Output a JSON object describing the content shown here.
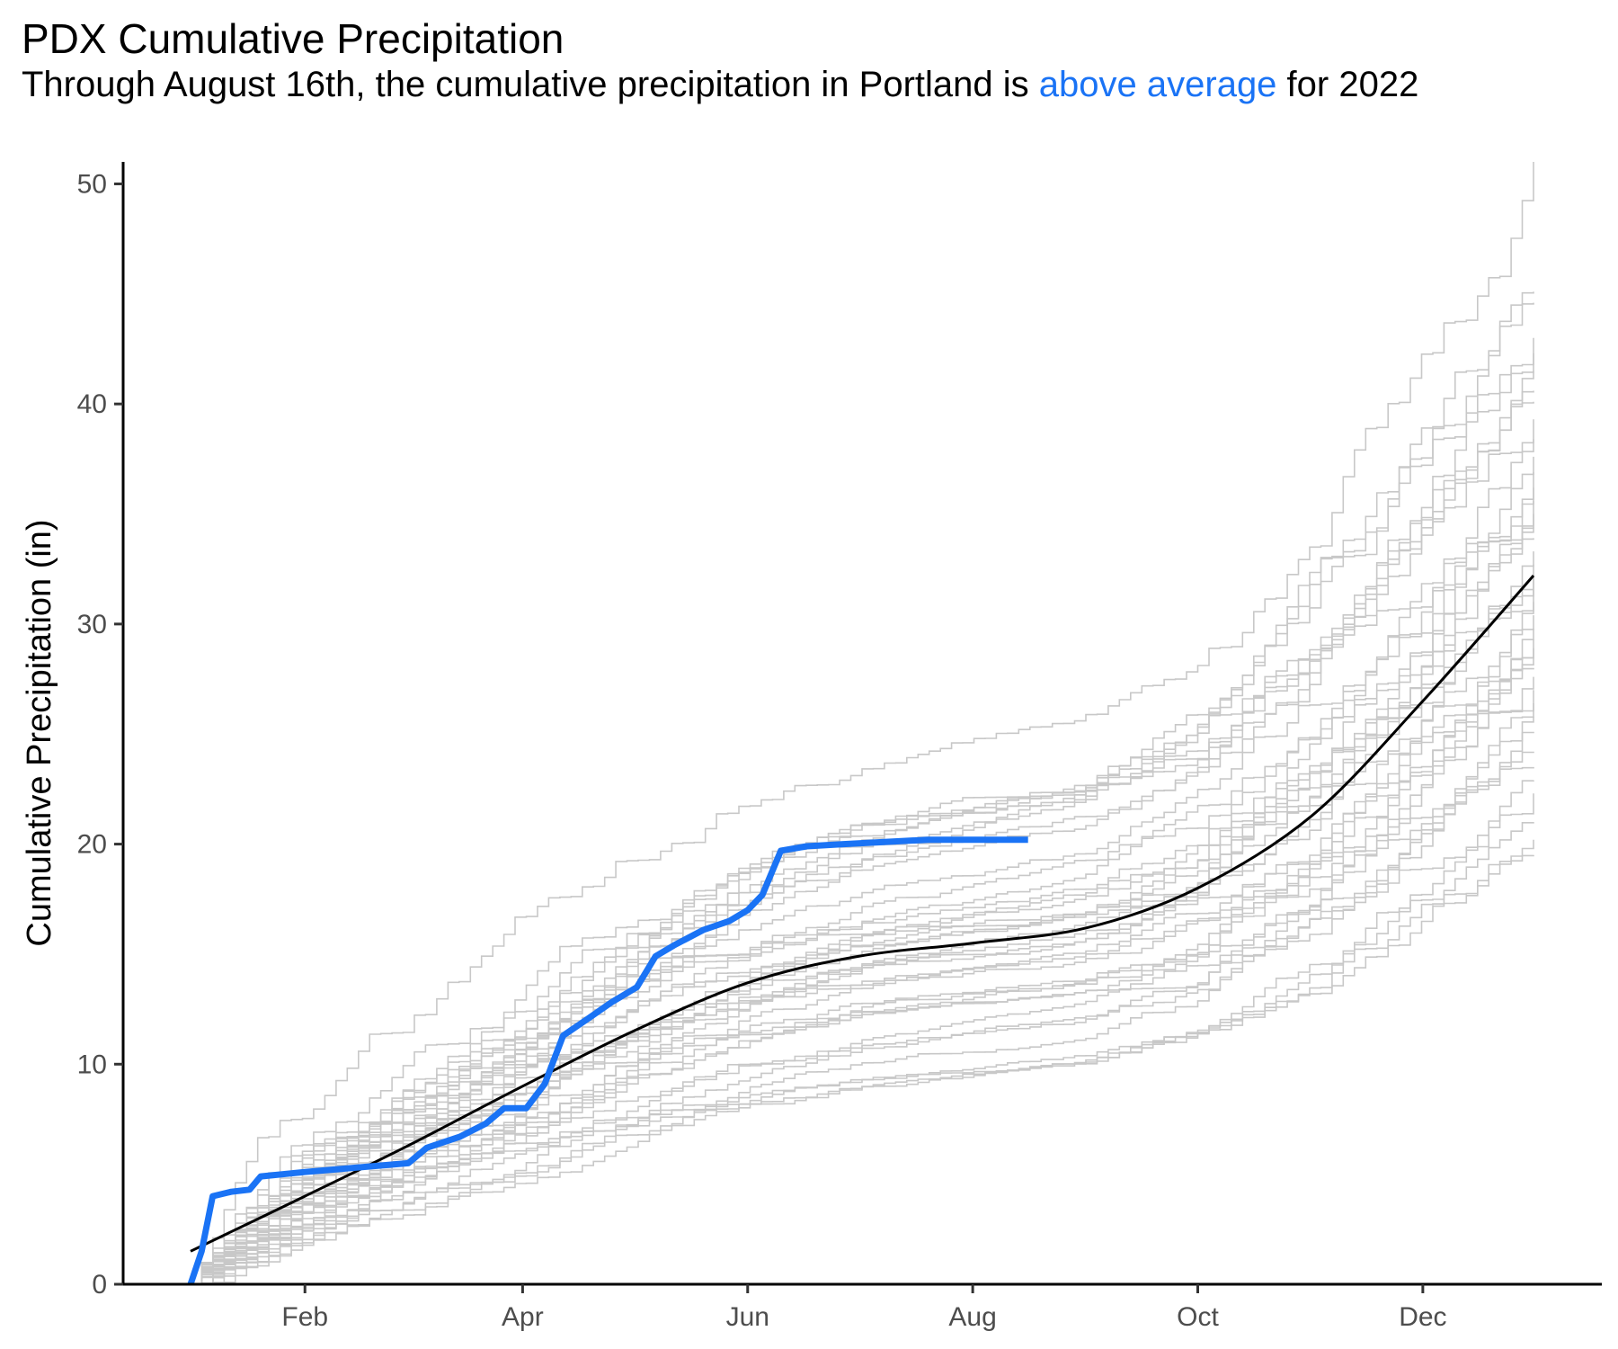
{
  "chart_data": {
    "type": "line",
    "title": "PDX Cumulative Precipitation",
    "subtitle": {
      "before": "Through August 16th, the cumulative precipitation in Portland is ",
      "highlight": "above average",
      "after": " for 2022"
    },
    "xlabel": "",
    "ylabel": "Cumulative Precipitation (in)",
    "xlim": [
      "2022-01-01",
      "2022-12-31"
    ],
    "ylim": [
      0,
      51
    ],
    "x_ticks": [
      {
        "date": "2022-02-01",
        "label": "Feb"
      },
      {
        "date": "2022-04-01",
        "label": "Apr"
      },
      {
        "date": "2022-06-01",
        "label": "Jun"
      },
      {
        "date": "2022-08-01",
        "label": "Aug"
      },
      {
        "date": "2022-10-01",
        "label": "Oct"
      },
      {
        "date": "2022-12-01",
        "label": "Dec"
      }
    ],
    "y_ticks": [
      0,
      10,
      20,
      30,
      40,
      50
    ],
    "grid": false,
    "legend": "none",
    "colors": {
      "current_year": "#1a73f5",
      "average": "#000000",
      "history": "#c8c8c8"
    },
    "average_series": {
      "x": [
        "2022-01-01",
        "2022-02-01",
        "2022-03-01",
        "2022-04-01",
        "2022-05-01",
        "2022-06-01",
        "2022-07-01",
        "2022-08-01",
        "2022-09-01",
        "2022-10-01",
        "2022-11-01",
        "2022-12-01",
        "2022-12-31"
      ],
      "y": [
        1.5,
        4.0,
        6.3,
        9.0,
        11.5,
        13.7,
        14.9,
        15.5,
        16.2,
        18.0,
        21.3,
        26.5,
        32.2
      ]
    },
    "current_year_series": {
      "x": [
        "2022-01-01",
        "2022-01-04",
        "2022-01-07",
        "2022-01-12",
        "2022-01-17",
        "2022-01-20",
        "2022-02-01",
        "2022-03-01",
        "2022-03-06",
        "2022-03-15",
        "2022-03-22",
        "2022-03-27",
        "2022-04-02",
        "2022-04-07",
        "2022-04-12",
        "2022-04-19",
        "2022-04-25",
        "2022-05-02",
        "2022-05-07",
        "2022-05-12",
        "2022-05-20",
        "2022-05-27",
        "2022-06-01",
        "2022-06-05",
        "2022-06-10",
        "2022-06-17",
        "2022-06-27",
        "2022-07-20",
        "2022-08-16"
      ],
      "y": [
        0.0,
        1.5,
        4.0,
        4.2,
        4.3,
        4.9,
        5.1,
        5.5,
        6.2,
        6.7,
        7.3,
        8.0,
        8.0,
        9.1,
        11.3,
        12.1,
        12.8,
        13.5,
        14.9,
        15.4,
        16.1,
        16.5,
        17.0,
        17.7,
        19.7,
        19.9,
        20.0,
        20.2,
        20.2
      ]
    },
    "historical_final_totals": [
      19.5,
      20.2,
      21.0,
      22.3,
      22.9,
      23.5,
      24.2,
      25.1,
      25.8,
      26.4,
      27.0,
      27.6,
      28.0,
      28.5,
      28.9,
      29.3,
      29.8,
      30.4,
      31.0,
      31.6,
      32.1,
      32.7,
      33.3,
      33.9,
      34.4,
      35.0,
      35.6,
      36.2,
      36.9,
      37.6,
      38.4,
      39.3,
      40.1,
      40.6,
      41.5,
      42.3,
      43.0,
      44.6,
      45.1,
      51.0
    ]
  }
}
